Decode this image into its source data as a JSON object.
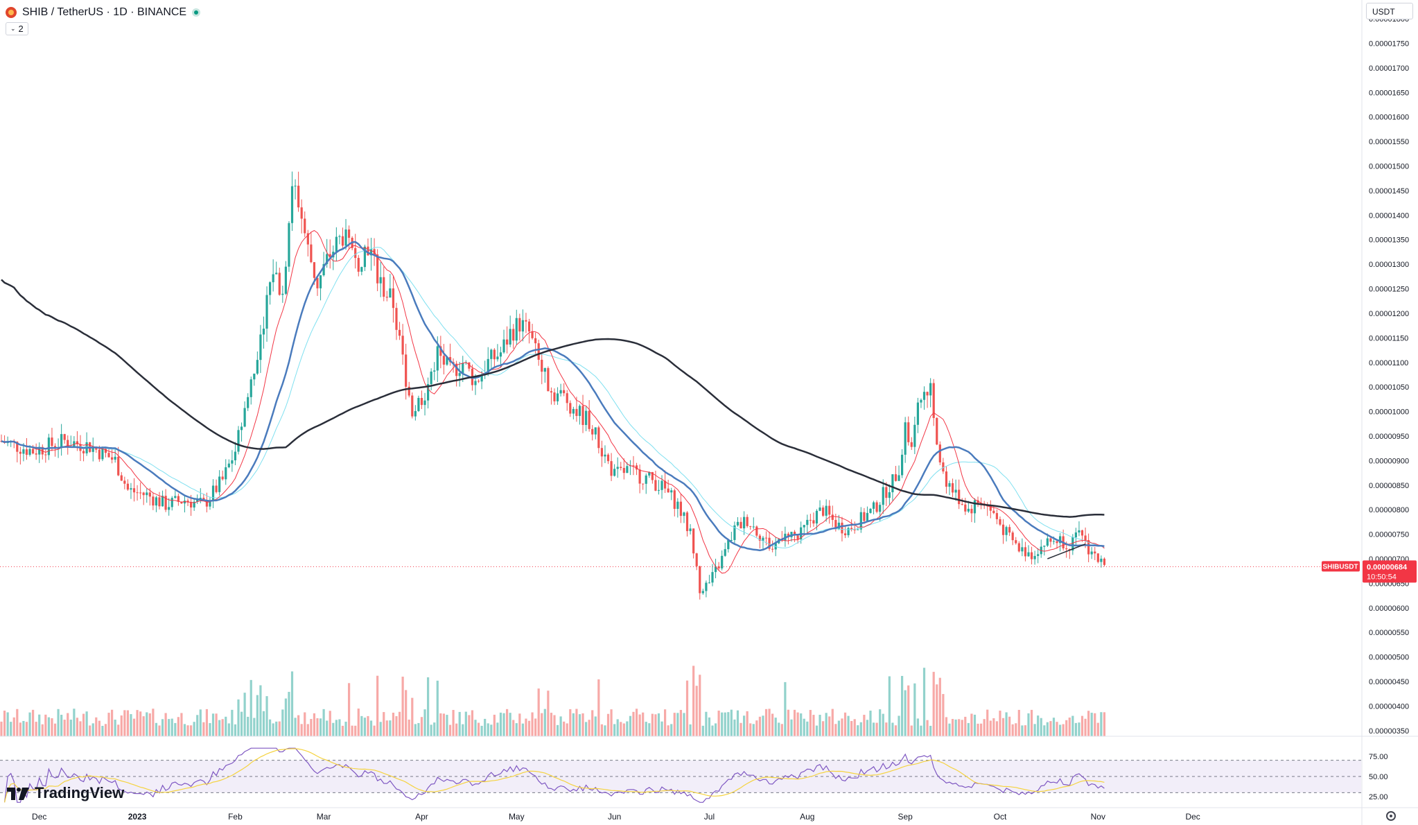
{
  "header": {
    "pair_title": "SHIB / TetherUS · 1D · BINANCE",
    "indicator_count": "2"
  },
  "currency_button": "USDT",
  "logo_text": "TradingView",
  "colors": {
    "up": "#26a69a",
    "down": "#ef5350",
    "ma_fast": "#f23645",
    "ma_mid": "#4a7bbd",
    "ma_slow_light": "#7fe0f0",
    "ma_long": "#2a2e39",
    "rsi_line": "#7e57c2",
    "rsi_ma": "#f5d33f",
    "price_tag": "#f23645"
  },
  "chart_data": [
    {
      "type": "candlestick",
      "symbol": "SHIBUSDT",
      "timeframe": "1D",
      "y_axis_ticks": [
        "0.00001800",
        "0.00001750",
        "0.00001700",
        "0.00001650",
        "0.00001600",
        "0.00001550",
        "0.00001500",
        "0.00001450",
        "0.00001400",
        "0.00001350",
        "0.00001300",
        "0.00001250",
        "0.00001200",
        "0.00001150",
        "0.00001100",
        "0.00001050",
        "0.00001000",
        "0.00000950",
        "0.00000900",
        "0.00000850",
        "0.00000800",
        "0.00000750",
        "0.00000700",
        "0.00000650",
        "0.00000600",
        "0.00000550",
        "0.00000500",
        "0.00000450",
        "0.00000400",
        "0.00000350"
      ],
      "x_axis_ticks": [
        "Dec",
        "2023",
        "Feb",
        "Mar",
        "Apr",
        "May",
        "Jun",
        "Jul",
        "Aug",
        "Sep",
        "Oct",
        "Nov",
        "Dec"
      ],
      "ylim": [
        3.3e-06,
        1.81e-05
      ],
      "current_price": {
        "symbol_label": "SHIBUSDT",
        "value": "0.00000684",
        "countdown": "10:50:54"
      },
      "series": [
        {
          "x": "2022-11-19",
          "close_path": [
            [
              0,
              9.4e-06
            ],
            [
              10,
              9.2e-06
            ],
            [
              20,
              9.4e-06
            ],
            [
              28,
              9.3e-06
            ],
            [
              36,
              9e-06
            ],
            [
              40,
              8.4e-06
            ],
            [
              46,
              8.3e-06
            ],
            [
              52,
              8.1e-06
            ],
            [
              58,
              8.2e-06
            ],
            [
              64,
              8.1e-06
            ],
            [
              70,
              8.6e-06
            ],
            [
              74,
              9.2e-06
            ],
            [
              78,
              1.03e-05
            ],
            [
              82,
              1.16e-05
            ],
            [
              86,
              1.29e-05
            ],
            [
              89,
              1.24e-05
            ],
            [
              92,
              1.47e-05
            ],
            [
              94,
              1.43e-05
            ],
            [
              97,
              1.33e-05
            ],
            [
              100,
              1.26e-05
            ],
            [
              104,
              1.32e-05
            ],
            [
              108,
              1.36e-05
            ],
            [
              112,
              1.3e-05
            ],
            [
              116,
              1.34e-05
            ],
            [
              120,
              1.26e-05
            ],
            [
              124,
              1.22e-05
            ],
            [
              126,
              1.14e-05
            ],
            [
              130,
              1e-05
            ],
            [
              134,
              1.04e-05
            ],
            [
              138,
              1.12e-05
            ],
            [
              142,
              1.08e-05
            ],
            [
              146,
              1.1e-05
            ],
            [
              150,
              1.06e-05
            ],
            [
              154,
              1.1e-05
            ],
            [
              158,
              1.12e-05
            ],
            [
              161,
              1.16e-05
            ],
            [
              164,
              1.18e-05
            ],
            [
              167,
              1.16e-05
            ],
            [
              170,
              1.1e-05
            ],
            [
              174,
              1.04e-05
            ],
            [
              178,
              1.03e-05
            ],
            [
              182,
              1e-05
            ],
            [
              186,
              9.8e-06
            ],
            [
              190,
              9.2e-06
            ],
            [
              194,
              8.7e-06
            ],
            [
              198,
              8.8e-06
            ],
            [
              202,
              8.7e-06
            ],
            [
              206,
              8.6e-06
            ],
            [
              210,
              8.4e-06
            ],
            [
              214,
              8.1e-06
            ],
            [
              218,
              7.5e-06
            ],
            [
              221,
              6.4e-06
            ],
            [
              224,
              6.5e-06
            ],
            [
              228,
              7e-06
            ],
            [
              232,
              7.6e-06
            ],
            [
              236,
              7.8e-06
            ],
            [
              240,
              7.5e-06
            ],
            [
              244,
              7.2e-06
            ],
            [
              248,
              7.6e-06
            ],
            [
              252,
              7.4e-06
            ],
            [
              256,
              7.8e-06
            ],
            [
              260,
              8e-06
            ],
            [
              264,
              7.7e-06
            ],
            [
              268,
              7.6e-06
            ],
            [
              272,
              7.8e-06
            ],
            [
              276,
              8e-06
            ],
            [
              280,
              8.4e-06
            ],
            [
              284,
              8.8e-06
            ],
            [
              286,
              9.7e-06
            ],
            [
              288,
              9.2e-06
            ],
            [
              290,
              1e-05
            ],
            [
              292,
              1.06e-05
            ],
            [
              294,
              1.04e-05
            ],
            [
              296,
              9.4e-06
            ],
            [
              298,
              8.7e-06
            ],
            [
              302,
              8.3e-06
            ],
            [
              306,
              8e-06
            ],
            [
              310,
              8.2e-06
            ],
            [
              314,
              7.9e-06
            ],
            [
              318,
              7.5e-06
            ],
            [
              322,
              7.2e-06
            ],
            [
              326,
              7.1e-06
            ],
            [
              330,
              7.3e-06
            ],
            [
              334,
              7.4e-06
            ],
            [
              338,
              7.3e-06
            ],
            [
              342,
              7.5e-06
            ],
            [
              344,
              7.2e-06
            ],
            [
              347,
              7e-06
            ],
            [
              349,
              6.8e-06
            ]
          ]
        },
        {
          "name": "",
          "values_note": ""
        }
      ]
    },
    {
      "type": "bar",
      "role": "volume"
    },
    {
      "type": "line",
      "role": "rsi",
      "y_axis_ticks": [
        "75.00",
        "50.00",
        "25.00"
      ],
      "ylim": [
        20,
        80
      ]
    }
  ]
}
